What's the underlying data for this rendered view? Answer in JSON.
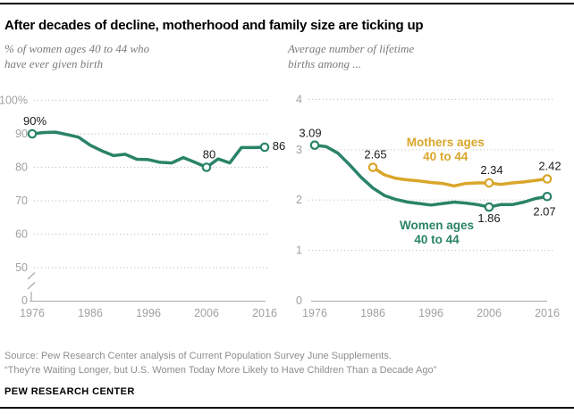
{
  "header": {
    "title": "After decades of decline, motherhood and family size are ticking up"
  },
  "panels": {
    "left": {
      "subtitle_lines": [
        "% of women ages 40 to 44 who",
        "have ever given birth"
      ]
    },
    "right": {
      "subtitle_lines": [
        "Average number of lifetime",
        "births among ..."
      ]
    }
  },
  "footer": {
    "source": "Source: Pew Research Center analysis of Current Population Survey June Supplements.",
    "quote": "“They’re Waiting Longer, but U.S. Women Today More Likely to Have Children Than a Decade Ago”",
    "brand": "PEW RESEARCH CENTER"
  },
  "colors": {
    "green": "#2a8368",
    "gold": "#d9a62a",
    "grid": "#c9c9c9",
    "baseline": "#a9a9a9",
    "axis_text": "#a1a1a1",
    "annotation_text": "#1a1a1a"
  },
  "chart_data": [
    {
      "type": "line",
      "title": "% of women ages 40 to 44 who have ever given birth",
      "xlabel": "",
      "ylabel": "%",
      "ylim": [
        0,
        100
      ],
      "grid": "dotted",
      "axis_break": true,
      "x": [
        1976,
        1978,
        1980,
        1982,
        1984,
        1986,
        1988,
        1990,
        1992,
        1994,
        1996,
        1998,
        2000,
        2002,
        2004,
        2006,
        2008,
        2010,
        2012,
        2014,
        2016
      ],
      "xticks": [
        1976,
        1986,
        1996,
        2006,
        2016
      ],
      "yticks": [
        {
          "label": "100%",
          "value": 100
        },
        {
          "label": "90",
          "value": 90
        },
        {
          "label": "80",
          "value": 80
        },
        {
          "label": "70",
          "value": 70
        },
        {
          "label": "60",
          "value": 60
        },
        {
          "label": "50",
          "value": 50
        },
        {
          "label": "0",
          "value": 0
        }
      ],
      "series": [
        {
          "name": "Women ages 40 to 44 who have ever given birth",
          "color": "green",
          "values": [
            90,
            90.4,
            90.5,
            89.8,
            89,
            86.6,
            84.9,
            83.5,
            83.9,
            82.4,
            82.3,
            81.5,
            81.3,
            82.9,
            81.5,
            80,
            82.5,
            81.3,
            85.9,
            85.9,
            86
          ],
          "marker_years": [
            1976,
            2006,
            2016
          ]
        }
      ],
      "annotations": [
        {
          "series": 0,
          "year": 1976,
          "text": "90%",
          "placement": "above"
        },
        {
          "series": 0,
          "year": 2006,
          "text": "80",
          "placement": "above"
        },
        {
          "series": 0,
          "year": 2016,
          "text": "86",
          "placement": "right"
        }
      ]
    },
    {
      "type": "line",
      "title": "Average number of lifetime births among ...",
      "xlabel": "",
      "ylabel": "births",
      "ylim": [
        0,
        4
      ],
      "grid": "dotted",
      "axis_break": false,
      "x": [
        1976,
        1978,
        1980,
        1982,
        1984,
        1986,
        1988,
        1990,
        1992,
        1994,
        1996,
        1998,
        2000,
        2002,
        2004,
        2006,
        2008,
        2010,
        2012,
        2014,
        2016
      ],
      "xticks": [
        1976,
        1986,
        1996,
        2006,
        2016
      ],
      "yticks": [
        {
          "label": "4",
          "value": 4
        },
        {
          "label": "3",
          "value": 3
        },
        {
          "label": "2",
          "value": 2
        },
        {
          "label": "1",
          "value": 1
        },
        {
          "label": "0",
          "value": 0
        }
      ],
      "series": [
        {
          "name": "Women ages 40 to 44",
          "color": "green",
          "values": [
            3.09,
            3.06,
            2.93,
            2.7,
            2.45,
            2.24,
            2.09,
            2.01,
            1.96,
            1.93,
            1.9,
            1.93,
            1.96,
            1.94,
            1.91,
            1.86,
            1.91,
            1.91,
            1.96,
            2.03,
            2.07
          ],
          "marker_years": [
            1976,
            2006,
            2016
          ],
          "label": {
            "lines": [
              "Women ages",
              "40 to 44"
            ],
            "year": 1997,
            "value": 1.35
          }
        },
        {
          "name": "Mothers ages 40 to 44",
          "color": "gold",
          "values": [
            null,
            null,
            null,
            null,
            null,
            2.65,
            2.5,
            2.43,
            2.4,
            2.38,
            2.35,
            2.33,
            2.28,
            2.33,
            2.34,
            2.34,
            2.31,
            2.34,
            2.36,
            2.39,
            2.42
          ],
          "marker_years": [
            1986,
            2006,
            2016
          ],
          "label": {
            "lines": [
              "Mothers ages",
              "40 to 44"
            ],
            "year": 1998.5,
            "value": 3.0
          }
        }
      ],
      "annotations": [
        {
          "series": 0,
          "year": 1976,
          "text": "3.09",
          "placement": "above-left"
        },
        {
          "series": 1,
          "year": 1986,
          "text": "2.65",
          "placement": "above"
        },
        {
          "series": 1,
          "year": 2006,
          "text": "2.34",
          "placement": "above"
        },
        {
          "series": 1,
          "year": 2016,
          "text": "2.42",
          "placement": "above"
        },
        {
          "series": 0,
          "year": 2006,
          "text": "1.86",
          "placement": "below"
        },
        {
          "series": 0,
          "year": 2016,
          "text": "2.07",
          "placement": "below-left"
        }
      ]
    }
  ]
}
